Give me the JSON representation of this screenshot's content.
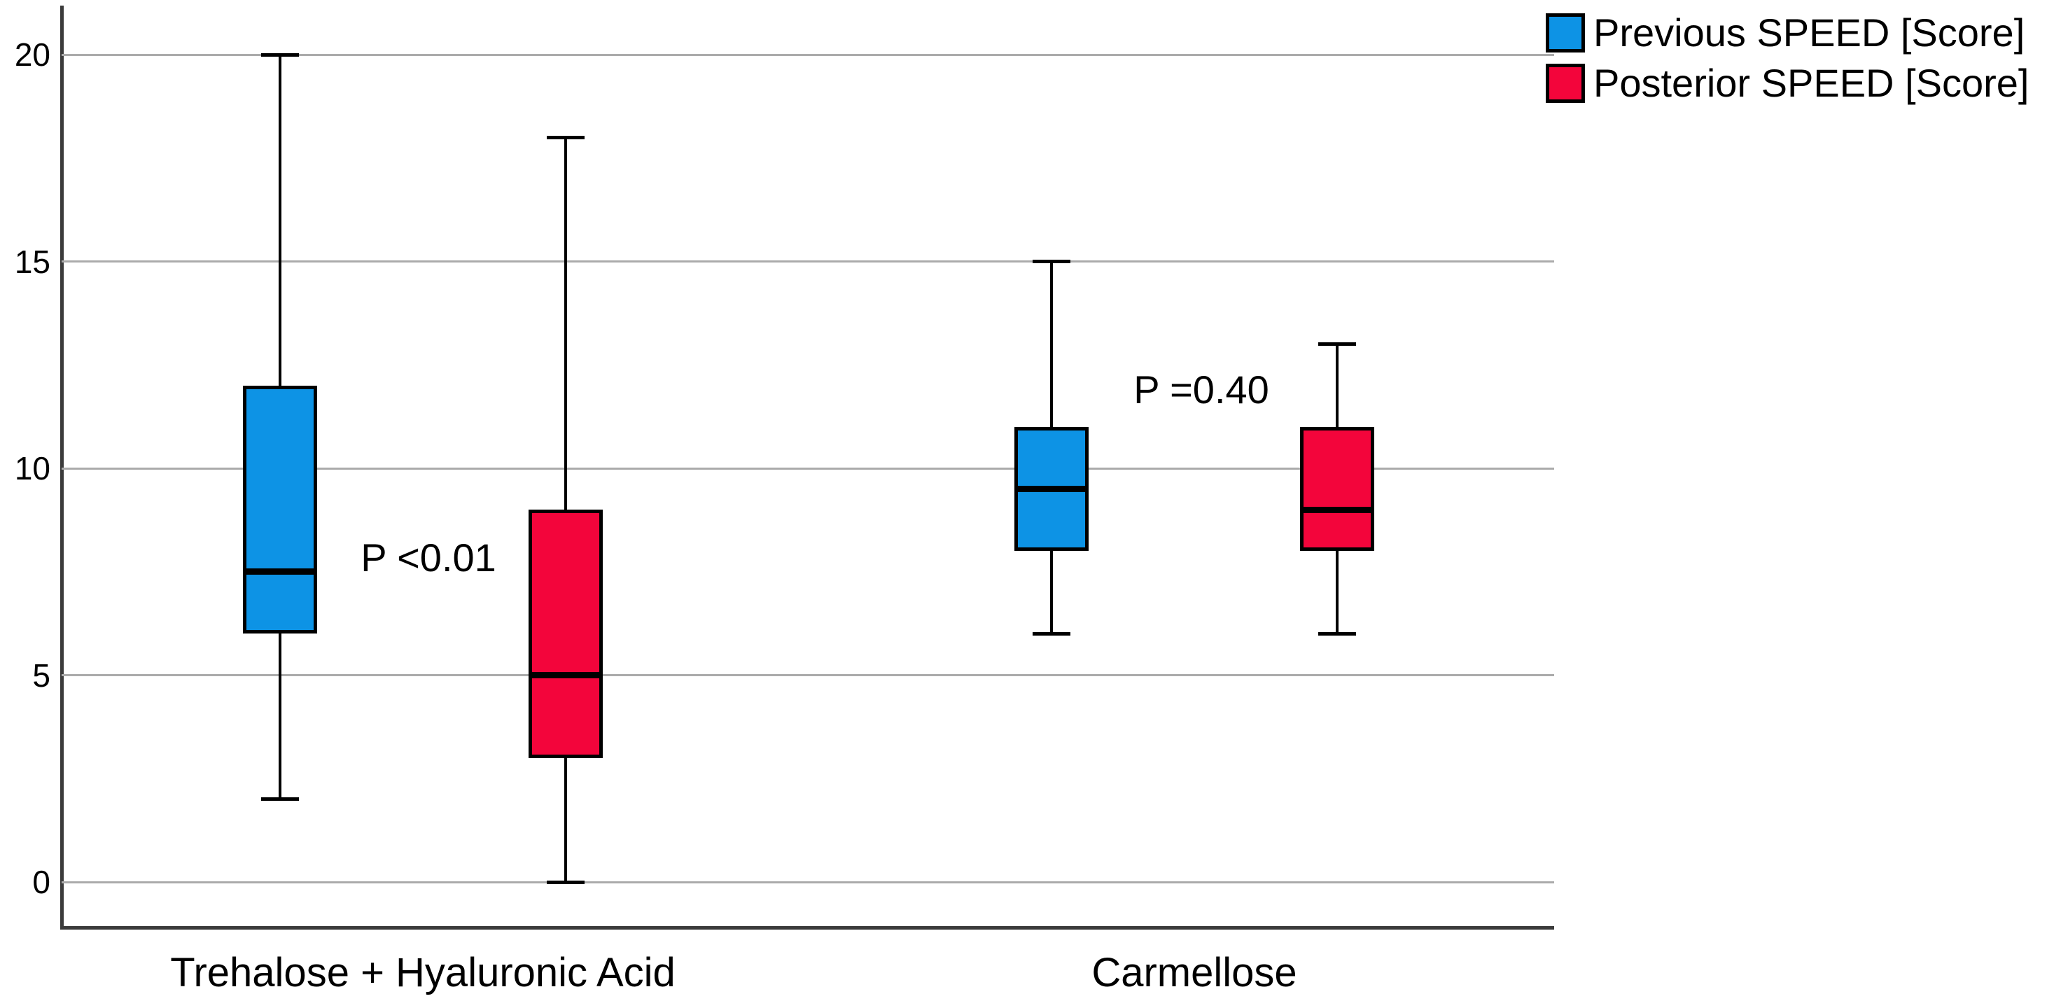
{
  "chart_data": {
    "type": "boxplot",
    "title": "",
    "xlabel": "",
    "ylabel": "",
    "categories": [
      "Trehalose + Hyaluronic Acid",
      "Carmellose"
    ],
    "series": [
      {
        "name": "Previous SPEED [Score]",
        "color": "#0D93E5",
        "boxes": [
          {
            "min": 2,
            "q1": 6,
            "median": 7.5,
            "q3": 12,
            "max": 20
          },
          {
            "min": 6,
            "q1": 8,
            "median": 9.5,
            "q3": 11,
            "max": 15
          }
        ]
      },
      {
        "name": "Posterior SPEED [Score]",
        "color": "#F3053B",
        "boxes": [
          {
            "min": 0,
            "q1": 3,
            "median": 5,
            "q3": 9,
            "max": 18
          },
          {
            "min": 6,
            "q1": 8,
            "median": 9,
            "q3": 11,
            "max": 13
          }
        ]
      }
    ],
    "annotations": [
      {
        "text": "P <0.01",
        "category": 0
      },
      {
        "text": "P =0.40",
        "category": 1
      }
    ],
    "y_axis": {
      "ticks": [
        20,
        15,
        10,
        5,
        0
      ],
      "range": [
        0,
        20
      ]
    },
    "grid": true,
    "legend_position": "top-right",
    "colors": {
      "gridline": "#ABABAB",
      "axis": "#3B3B3B",
      "box_border": "#000000",
      "text": "#000000"
    }
  }
}
